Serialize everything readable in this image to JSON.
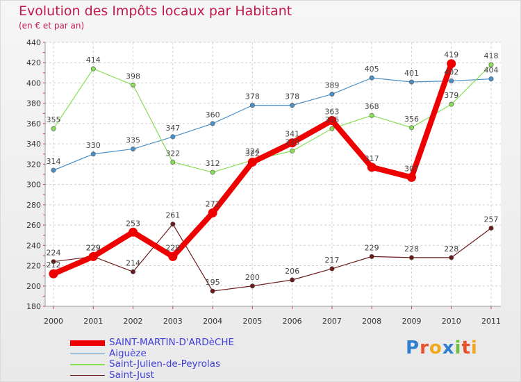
{
  "chart_data": {
    "type": "line",
    "title": "Evolution des Impôts locaux par Habitant",
    "subtitle": "(en € et par an)",
    "xlabel": "",
    "ylabel": "",
    "ylim": [
      180,
      440
    ],
    "yticks": [
      180,
      200,
      220,
      240,
      260,
      280,
      300,
      320,
      340,
      360,
      380,
      400,
      420,
      440
    ],
    "categories": [
      "2000",
      "2001",
      "2002",
      "2003",
      "2004",
      "2005",
      "2006",
      "2007",
      "2008",
      "2009",
      "2010",
      "2011"
    ],
    "series": [
      {
        "name": "SAINT-MARTIN-D'ARDèCHE",
        "color": "#ee0000",
        "values": [
          212,
          229,
          253,
          229,
          272,
          322,
          341,
          363,
          317,
          307,
          419,
          null
        ],
        "labels": [
          "212",
          "229",
          "253",
          "229",
          "272",
          "322",
          "341",
          "363",
          "317",
          "307",
          "419",
          ""
        ]
      },
      {
        "name": "Aiguèze",
        "color": "#4a90c8",
        "values": [
          314,
          330,
          335,
          347,
          360,
          378,
          378,
          389,
          405,
          401,
          402,
          404
        ],
        "labels": [
          "314",
          "330",
          "335",
          "347",
          "360",
          "378",
          "378",
          "389",
          "405",
          "401",
          "402",
          "404"
        ]
      },
      {
        "name": "Saint-Julien-de-Peyrolas",
        "color": "#88dd55",
        "values": [
          355,
          414,
          398,
          322,
          312,
          324,
          333,
          355,
          368,
          356,
          379,
          418
        ],
        "labels": [
          "355",
          "414",
          "398",
          "322",
          "312",
          "324",
          "333",
          "355",
          "368",
          "356",
          "379",
          "418"
        ]
      },
      {
        "name": "Saint-Just",
        "color": "#6b1a1a",
        "values": [
          224,
          229,
          214,
          261,
          195,
          200,
          206,
          217,
          229,
          228,
          228,
          257
        ],
        "labels": [
          "224",
          "229",
          "214",
          "261",
          "195",
          "200",
          "206",
          "217",
          "229",
          "228",
          "228",
          "257"
        ]
      }
    ]
  },
  "logo": {
    "letters": [
      {
        "char": "P",
        "color": "#2e7fd0"
      },
      {
        "char": "r",
        "color": "#e8502a"
      },
      {
        "char": "o",
        "color": "#f2a81d"
      },
      {
        "char": "x",
        "color": "#2e7fd0"
      },
      {
        "char": "i",
        "color": "#6fbe3d"
      },
      {
        "char": "t",
        "color": "#e8502a"
      },
      {
        "char": "i",
        "color": "#f2a81d"
      }
    ]
  }
}
